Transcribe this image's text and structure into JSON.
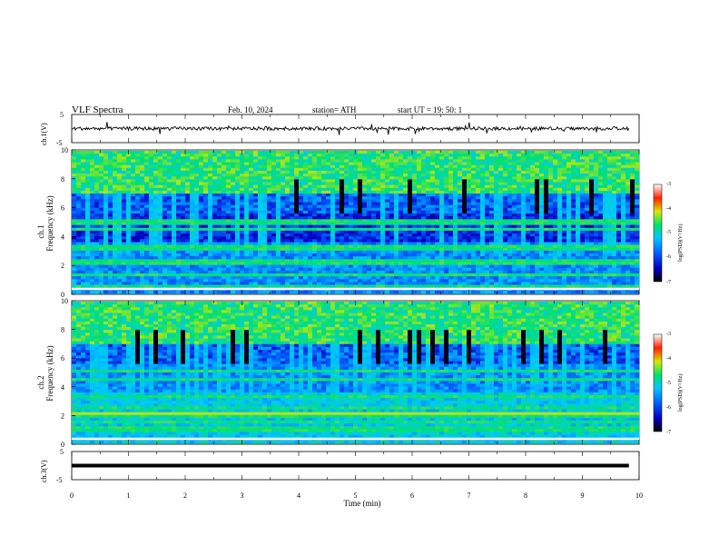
{
  "header": {
    "title": "VLF  Spectra",
    "date": "Feb. 10, 2024",
    "station": "station= ATH",
    "start_ut": "start  UT  =    19: 50: 1"
  },
  "panels": {
    "ch1_wave": {
      "ylabel": "ch.1(V)",
      "ytick_top": "5",
      "ytick_bottom": "-5"
    },
    "ch1_spec": {
      "ylabel_line1": "ch.1",
      "ylabel_line2": "Frequency  (kHz)",
      "colorbar_label": "log(PSD)(V²/Hz)",
      "colorbar_ticks": [
        "-3",
        "-4",
        "-5",
        "-6",
        "-7"
      ]
    },
    "ch2_spec": {
      "ylabel_line1": "ch.2",
      "ylabel_line2": "Frequency  (kHz)",
      "colorbar_label": "log(PSD)(V²/Hz)",
      "colorbar_ticks": [
        "-3",
        "-4",
        "-5",
        "-6",
        "-7"
      ]
    },
    "ch3_wave": {
      "ylabel": "ch.3(V)",
      "ytick_top": "5",
      "ytick_bottom": "-5"
    }
  },
  "chart_data": [
    {
      "type": "line",
      "panel": "ch.1 waveform",
      "ylabel": "ch.1(V)",
      "ylim": [
        -5,
        5
      ],
      "xlim": [
        0,
        10
      ],
      "level": 0
    },
    {
      "type": "heatmap",
      "panel": "ch.1 spectrogram",
      "ylabel": "Frequency  (kHz)",
      "ylim": [
        0,
        10
      ],
      "yticks": [
        "0",
        "2",
        "4",
        "6",
        "8",
        "10"
      ],
      "colorbar": {
        "label": "log(PSD)(V²/Hz)",
        "range": [
          -7,
          -3
        ]
      },
      "band_khz": [
        0.5,
        1.3,
        2.1,
        2.2,
        3.2,
        4.5,
        5.0
      ]
    },
    {
      "type": "heatmap",
      "panel": "ch.2 spectrogram",
      "ylabel": "Frequency  (kHz)",
      "ylim": [
        0,
        10
      ],
      "yticks": [
        "0",
        "2",
        "4",
        "6",
        "8",
        "10"
      ],
      "colorbar": {
        "label": "log(PSD)(V²/Hz)",
        "range": [
          -7,
          -3
        ]
      },
      "band_khz": [
        1.0,
        1.5,
        2.0,
        2.5,
        3.3,
        4.5,
        5.1
      ]
    },
    {
      "type": "line",
      "panel": "ch.3 waveform",
      "ylabel": "ch.3(V)",
      "ylim": [
        -5,
        5
      ],
      "xlim": [
        0,
        10
      ],
      "level": 0
    }
  ],
  "xaxis": {
    "label": "Time  (min)",
    "ticks": [
      "0",
      "1",
      "2",
      "3",
      "4",
      "5",
      "6",
      "7",
      "8",
      "9",
      "10"
    ]
  },
  "colorbar_colors": [
    "#000000",
    "#0000c8",
    "#0064ff",
    "#00c8ff",
    "#00e070",
    "#d8e800",
    "#ff2000",
    "#ffffff"
  ]
}
